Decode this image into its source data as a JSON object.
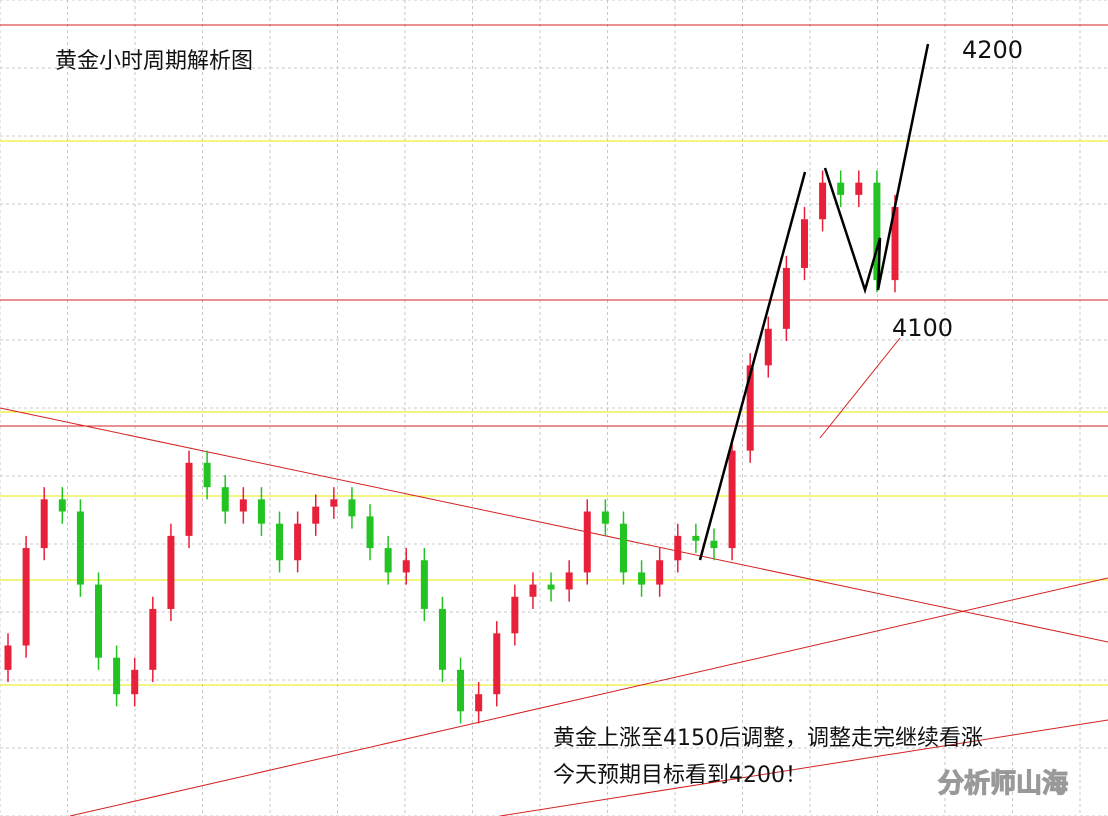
{
  "chart_data": {
    "type": "candlestick",
    "title": "黄金小时周期解析图",
    "up_color": "#e8203a",
    "down_color": "#22c322",
    "ylim": [
      3885,
      4220
    ],
    "open": [
      3945,
      3955,
      3995,
      4015,
      4010,
      3980,
      3950,
      3935,
      3945,
      3970,
      4000,
      4030,
      4020,
      4010,
      4015,
      4005,
      3990,
      4005,
      4012,
      4015,
      4008,
      3995,
      3985,
      3990,
      3970,
      3945,
      3928,
      3935,
      3960,
      3975,
      3980,
      3978,
      3985,
      4010,
      4005,
      3985,
      3980,
      3990,
      4000,
      3998,
      3995,
      4035,
      4070,
      4085,
      4110,
      4130,
      4145,
      4140,
      4145,
      4105
    ],
    "high": [
      3960,
      4000,
      4020,
      4020,
      4015,
      3985,
      3955,
      3950,
      3975,
      4005,
      4035,
      4035,
      4025,
      4020,
      4020,
      4010,
      4010,
      4017,
      4020,
      4020,
      4013,
      4000,
      3995,
      3995,
      3975,
      3950,
      3940,
      3965,
      3980,
      3985,
      3985,
      3990,
      4015,
      4015,
      4010,
      3990,
      3995,
      4005,
      4005,
      4003,
      4040,
      4075,
      4090,
      4115,
      4135,
      4150,
      4150,
      4150,
      4150,
      4140
    ],
    "low": [
      3940,
      3950,
      3990,
      4005,
      3975,
      3945,
      3930,
      3930,
      3940,
      3965,
      3995,
      4015,
      4005,
      4005,
      4000,
      3985,
      3985,
      4000,
      4007,
      4003,
      3990,
      3980,
      3980,
      3965,
      3940,
      3923,
      3923,
      3930,
      3955,
      3970,
      3973,
      3973,
      3980,
      4000,
      3980,
      3975,
      3975,
      3985,
      3993,
      3990,
      3990,
      4030,
      4065,
      4080,
      4105,
      4125,
      4135,
      4135,
      4100,
      4100
    ],
    "close": [
      3955,
      3995,
      4015,
      4010,
      3980,
      3950,
      3935,
      3945,
      3970,
      4000,
      4030,
      4020,
      4010,
      4015,
      4005,
      3990,
      4005,
      4012,
      4015,
      4008,
      3995,
      3985,
      3990,
      3970,
      3945,
      3928,
      3935,
      3960,
      3975,
      3980,
      3978,
      3985,
      4010,
      4005,
      3985,
      3980,
      3990,
      4000,
      3998,
      3995,
      4035,
      4070,
      4085,
      4110,
      4130,
      4145,
      4140,
      4145,
      4105,
      4135
    ],
    "annotations": [
      "4200",
      "4100",
      "黄金上涨至4150后调整，调整走完继续看涨",
      "今天预期目标看到4200！"
    ],
    "watermark": "分析师山海"
  }
}
